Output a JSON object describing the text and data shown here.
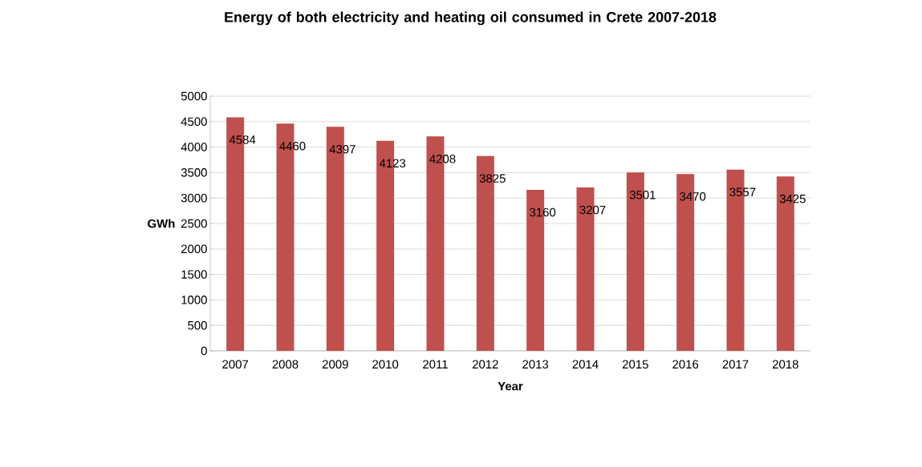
{
  "chart_data": {
    "type": "bar",
    "title": "Energy of both electricity and heating oil consumed in Crete 2007-2018",
    "xlabel": "Year",
    "ylabel": "GWh",
    "categories": [
      "2007",
      "2008",
      "2009",
      "2010",
      "2011",
      "2012",
      "2013",
      "2014",
      "2015",
      "2016",
      "2017",
      "2018"
    ],
    "values": [
      4584,
      4460,
      4397,
      4123,
      4208,
      3825,
      3160,
      3207,
      3501,
      3470,
      3557,
      3425
    ],
    "color": "#c0504d",
    "ylim": [
      0,
      5000
    ],
    "yticks": [
      0,
      500,
      1000,
      1500,
      2000,
      2500,
      3000,
      3500,
      4000,
      4500,
      5000
    ],
    "grid": "y",
    "data_labels": true
  }
}
